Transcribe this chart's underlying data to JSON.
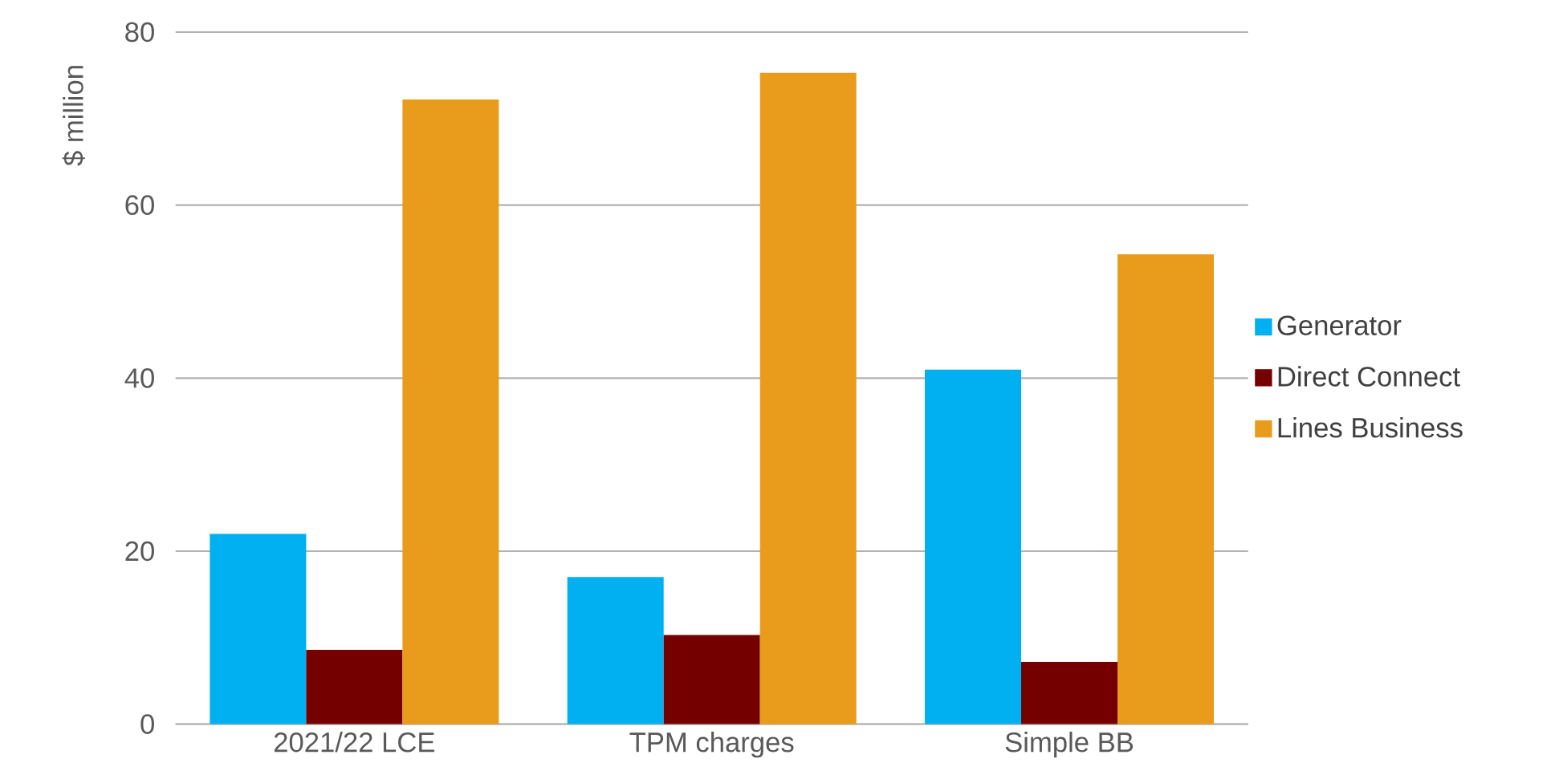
{
  "chart_data": {
    "type": "bar",
    "ylabel": "$ million",
    "categories": [
      "2021/22 LCE",
      "TPM charges",
      "Simple BB"
    ],
    "series": [
      {
        "name": "Generator",
        "color": "#00b0f0",
        "values": [
          22.0,
          17.0,
          41.0
        ]
      },
      {
        "name": "Direct Connect",
        "color": "#750000",
        "values": [
          8.6,
          10.3,
          7.2
        ]
      },
      {
        "name": "Lines Business",
        "color": "#e99c1c",
        "values": [
          72.2,
          75.3,
          54.3
        ]
      }
    ],
    "ylim": [
      0,
      80
    ],
    "yticks": [
      0,
      20,
      40,
      60,
      80
    ],
    "grid": "y",
    "legend": "right"
  }
}
